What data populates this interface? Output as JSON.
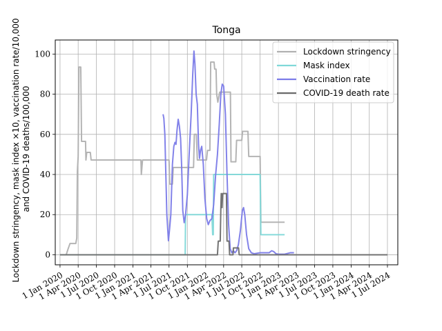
{
  "chart_data": {
    "type": "line",
    "title": "Tonga",
    "ylabel_lines": [
      "Lockdown stringency, mask index ×10, vaccination rate/10,000",
      "and COVID-19 deaths/100,000"
    ],
    "xlabel": "",
    "ylim": [
      -5,
      107
    ],
    "xlim": [
      "2019-12-08",
      "2024-08-22"
    ],
    "yticks": [
      0,
      20,
      40,
      60,
      80,
      100
    ],
    "ytick_labels": [
      "0",
      "20",
      "40",
      "60",
      "80",
      "100"
    ],
    "xticks": [
      "2020-01-01",
      "2020-04-01",
      "2020-07-01",
      "2020-10-01",
      "2021-01-01",
      "2021-04-01",
      "2021-07-01",
      "2021-10-01",
      "2022-01-01",
      "2022-04-01",
      "2022-07-01",
      "2022-10-01",
      "2023-01-01",
      "2023-04-01",
      "2023-07-01",
      "2023-10-01",
      "2024-01-01",
      "2024-04-01",
      "2024-07-01"
    ],
    "xtick_labels": [
      "1 Jan 2020",
      "1 Apr 2020",
      "1 Jul 2020",
      "1 Oct 2020",
      "1 Jan 2021",
      "1 Apr 2021",
      "1 Jul 2021",
      "1 Oct 2021",
      "1 Jan 2022",
      "1 Apr 2022",
      "1 Jul 2022",
      "1 Oct 2022",
      "1 Jan 2023",
      "1 Apr 2023",
      "1 Jul 2023",
      "1 Oct 2023",
      "1 Jan 2024",
      "1 Apr 2024",
      "1 Jul 2024"
    ],
    "grid": true,
    "legend_position": "top-right",
    "series": [
      {
        "name": "Lockdown stringency",
        "color": "#b0b0b0",
        "step": true,
        "points": [
          [
            "2020-01-01",
            0
          ],
          [
            "2020-02-01",
            0
          ],
          [
            "2020-02-10",
            2.8
          ],
          [
            "2020-02-20",
            5.6
          ],
          [
            "2020-03-20",
            5.6
          ],
          [
            "2020-03-25",
            8.3
          ],
          [
            "2020-03-28",
            41.7
          ],
          [
            "2020-04-01",
            49
          ],
          [
            "2020-04-05",
            93.5
          ],
          [
            "2020-04-14",
            93.5
          ],
          [
            "2020-04-18",
            56.5
          ],
          [
            "2020-05-08",
            56.5
          ],
          [
            "2020-05-10",
            47.2
          ],
          [
            "2020-05-14",
            51
          ],
          [
            "2020-06-01",
            51
          ],
          [
            "2020-06-05",
            47.2
          ],
          [
            "2021-02-10",
            47.2
          ],
          [
            "2021-02-12",
            40
          ],
          [
            "2021-02-18",
            47.2
          ],
          [
            "2021-07-01",
            47.2
          ],
          [
            "2021-07-05",
            35.2
          ],
          [
            "2021-07-18",
            35.2
          ],
          [
            "2021-07-22",
            43.5
          ],
          [
            "2021-11-01",
            43.5
          ],
          [
            "2021-11-05",
            60
          ],
          [
            "2021-11-15",
            60
          ],
          [
            "2021-11-20",
            47.2
          ],
          [
            "2022-01-05",
            47.2
          ],
          [
            "2022-01-10",
            52
          ],
          [
            "2022-01-22",
            52
          ],
          [
            "2022-01-26",
            96
          ],
          [
            "2022-02-12",
            96
          ],
          [
            "2022-02-15",
            92.5
          ],
          [
            "2022-02-22",
            92.5
          ],
          [
            "2022-02-25",
            80
          ],
          [
            "2022-03-03",
            76
          ],
          [
            "2022-03-12",
            81
          ],
          [
            "2022-05-05",
            81
          ],
          [
            "2022-05-08",
            46.3
          ],
          [
            "2022-06-01",
            46.3
          ],
          [
            "2022-06-05",
            57
          ],
          [
            "2022-07-01",
            57
          ],
          [
            "2022-07-05",
            61.5
          ],
          [
            "2022-08-01",
            61.5
          ],
          [
            "2022-08-05",
            49
          ],
          [
            "2022-10-01",
            49
          ],
          [
            "2022-10-05",
            16.2
          ],
          [
            "2023-02-01",
            16.2
          ]
        ]
      },
      {
        "name": "Mask index",
        "color": "#7fd8d8",
        "step": true,
        "points": [
          [
            "2020-01-01",
            0
          ],
          [
            "2021-09-20",
            0
          ],
          [
            "2021-09-22",
            20
          ],
          [
            "2022-02-01",
            20
          ],
          [
            "2022-02-05",
            10
          ],
          [
            "2022-02-08",
            10
          ],
          [
            "2022-02-10",
            40
          ],
          [
            "2022-10-01",
            40
          ],
          [
            "2022-10-05",
            10
          ],
          [
            "2023-02-01",
            10
          ]
        ]
      },
      {
        "name": "Vaccination rate",
        "color": "#7b7be8",
        "step": false,
        "points": [
          [
            "2021-06-01",
            70
          ],
          [
            "2021-06-05",
            68
          ],
          [
            "2021-06-10",
            60
          ],
          [
            "2021-06-15",
            40
          ],
          [
            "2021-06-20",
            20
          ],
          [
            "2021-06-28",
            7
          ],
          [
            "2021-07-03",
            12
          ],
          [
            "2021-07-10",
            20
          ],
          [
            "2021-07-18",
            45
          ],
          [
            "2021-07-25",
            54
          ],
          [
            "2021-07-31",
            56
          ],
          [
            "2021-08-05",
            55
          ],
          [
            "2021-08-10",
            62
          ],
          [
            "2021-08-16",
            67.5
          ],
          [
            "2021-08-22",
            64
          ],
          [
            "2021-08-28",
            58
          ],
          [
            "2021-09-02",
            45
          ],
          [
            "2021-09-08",
            22
          ],
          [
            "2021-09-15",
            16
          ],
          [
            "2021-09-22",
            20
          ],
          [
            "2021-10-01",
            30
          ],
          [
            "2021-10-10",
            50
          ],
          [
            "2021-10-20",
            70
          ],
          [
            "2021-10-28",
            90
          ],
          [
            "2021-11-03",
            101.5
          ],
          [
            "2021-11-08",
            95
          ],
          [
            "2021-11-14",
            80
          ],
          [
            "2021-11-20",
            75
          ],
          [
            "2021-11-26",
            55
          ],
          [
            "2021-12-01",
            48
          ],
          [
            "2021-12-06",
            52
          ],
          [
            "2021-12-12",
            54
          ],
          [
            "2021-12-20",
            45
          ],
          [
            "2021-12-28",
            28
          ],
          [
            "2022-01-06",
            18
          ],
          [
            "2022-01-14",
            15
          ],
          [
            "2022-01-22",
            17
          ],
          [
            "2022-02-01",
            18
          ],
          [
            "2022-02-10",
            25
          ],
          [
            "2022-02-20",
            40
          ],
          [
            "2022-03-01",
            50
          ],
          [
            "2022-03-10",
            65
          ],
          [
            "2022-03-18",
            80
          ],
          [
            "2022-03-25",
            85
          ],
          [
            "2022-04-01",
            84
          ],
          [
            "2022-04-10",
            70
          ],
          [
            "2022-04-18",
            40
          ],
          [
            "2022-04-26",
            15
          ],
          [
            "2022-05-04",
            3
          ],
          [
            "2022-05-12",
            1
          ],
          [
            "2022-05-20",
            2
          ],
          [
            "2022-05-28",
            1
          ],
          [
            "2022-06-05",
            2
          ],
          [
            "2022-06-14",
            5
          ],
          [
            "2022-06-24",
            12
          ],
          [
            "2022-07-04",
            22
          ],
          [
            "2022-07-10",
            23.5
          ],
          [
            "2022-07-16",
            20
          ],
          [
            "2022-07-25",
            10
          ],
          [
            "2022-08-05",
            3
          ],
          [
            "2022-08-18",
            1
          ],
          [
            "2022-09-01",
            0.5
          ],
          [
            "2022-10-01",
            1
          ],
          [
            "2022-11-01",
            1
          ],
          [
            "2022-11-15",
            1
          ],
          [
            "2022-11-28",
            2
          ],
          [
            "2022-12-08",
            1.6
          ],
          [
            "2022-12-20",
            0.5
          ],
          [
            "2023-01-01",
            0.3
          ],
          [
            "2023-02-01",
            0.3
          ],
          [
            "2023-03-01",
            1
          ],
          [
            "2023-03-20",
            1
          ]
        ]
      },
      {
        "name": "COVID-19 death rate",
        "color": "#6b6b6b",
        "step": true,
        "points": [
          [
            "2020-01-01",
            0
          ],
          [
            "2022-03-01",
            0
          ],
          [
            "2022-03-05",
            6.8
          ],
          [
            "2022-03-15",
            6.8
          ],
          [
            "2022-03-18",
            23.5
          ],
          [
            "2022-03-20",
            30.5
          ],
          [
            "2022-03-24",
            23.5
          ],
          [
            "2022-03-27",
            30.5
          ],
          [
            "2022-04-15",
            30.5
          ],
          [
            "2022-04-18",
            6.8
          ],
          [
            "2022-04-28",
            6.8
          ],
          [
            "2022-05-01",
            0
          ],
          [
            "2022-05-18",
            0
          ],
          [
            "2022-05-20",
            3.4
          ],
          [
            "2022-06-15",
            3.4
          ],
          [
            "2022-06-18",
            0
          ],
          [
            "2024-07-01",
            0
          ]
        ]
      }
    ]
  }
}
